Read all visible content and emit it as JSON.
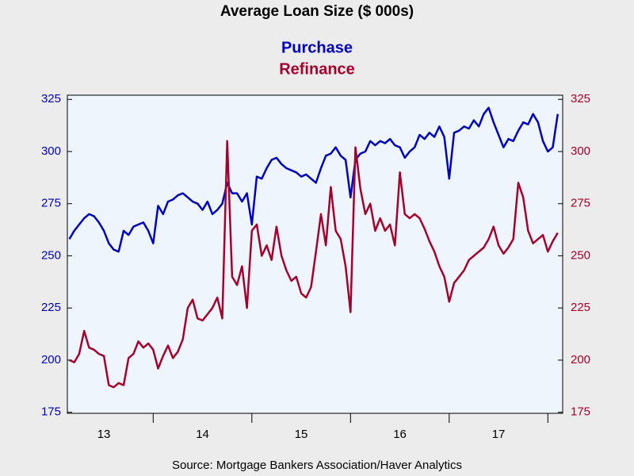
{
  "chart_data": {
    "type": "line",
    "title": "Average Loan Size ($ 000s)",
    "source": "Source:  Mortgage Bankers Association/Haver Analytics",
    "x": [
      13.15,
      13.2,
      13.25,
      13.3,
      13.35,
      13.4,
      13.45,
      13.5,
      13.55,
      13.6,
      13.65,
      13.7,
      13.75,
      13.8,
      13.85,
      13.9,
      13.95,
      14.0,
      14.05,
      14.1,
      14.15,
      14.2,
      14.25,
      14.3,
      14.35,
      14.4,
      14.45,
      14.5,
      14.55,
      14.6,
      14.65,
      14.7,
      14.75,
      14.8,
      14.85,
      14.9,
      14.95,
      15.0,
      15.05,
      15.1,
      15.15,
      15.2,
      15.25,
      15.3,
      15.35,
      15.4,
      15.45,
      15.5,
      15.55,
      15.6,
      15.65,
      15.7,
      15.75,
      15.8,
      15.85,
      15.9,
      15.95,
      16.0,
      16.05,
      16.1,
      16.15,
      16.2,
      16.25,
      16.3,
      16.35,
      16.4,
      16.45,
      16.5,
      16.55,
      16.6,
      16.65,
      16.7,
      16.75,
      16.8,
      16.85,
      16.9,
      16.95,
      17.0,
      17.05,
      17.1,
      17.15,
      17.2,
      17.25,
      17.3,
      17.35,
      17.4,
      17.45,
      17.5,
      17.55,
      17.6,
      17.65,
      17.7,
      17.75,
      17.8,
      17.85,
      17.9,
      17.95,
      18.0,
      18.05,
      18.1
    ],
    "series": [
      {
        "name": "Purchase",
        "color": "#0000c0",
        "values": [
          258,
          262,
          265,
          268,
          270,
          269,
          266,
          262,
          256,
          253,
          252,
          262,
          260,
          264,
          265,
          266,
          262,
          256,
          274,
          270,
          276,
          277,
          279,
          280,
          278,
          276,
          275,
          272,
          276,
          270,
          272,
          275,
          285,
          280,
          280,
          276,
          280,
          265,
          288,
          287,
          292,
          296,
          297,
          294,
          292,
          291,
          290,
          288,
          289,
          287,
          285,
          292,
          298,
          299,
          302,
          298,
          296,
          278,
          296,
          299,
          300,
          305,
          303,
          305,
          304,
          306,
          303,
          302,
          297,
          300,
          302,
          308,
          306,
          309,
          307,
          312,
          307,
          287,
          309,
          310,
          312,
          311,
          315,
          312,
          318,
          321,
          314,
          308,
          302,
          306,
          305,
          310,
          314,
          313,
          318,
          314,
          305,
          300,
          302,
          318
        ]
      },
      {
        "name": "Refinance",
        "color": "#a5002c",
        "axis": "y2",
        "values": [
          200,
          199,
          203,
          214,
          206,
          205,
          203,
          202,
          188,
          187,
          189,
          188,
          201,
          203,
          209,
          206,
          208,
          205,
          196,
          202,
          207,
          201,
          204,
          210,
          225,
          229,
          220,
          219,
          222,
          225,
          230,
          220,
          305,
          240,
          236,
          245,
          225,
          262,
          265,
          250,
          255,
          248,
          264,
          250,
          243,
          238,
          240,
          232,
          230,
          235,
          252,
          270,
          255,
          283,
          262,
          258,
          245,
          223,
          302,
          282,
          270,
          275,
          262,
          268,
          262,
          265,
          255,
          290,
          270,
          268,
          270,
          268,
          263,
          257,
          252,
          245,
          240,
          228,
          237,
          240,
          243,
          248,
          250,
          252,
          254,
          258,
          264,
          255,
          251,
          254,
          258,
          285,
          278,
          262,
          256,
          258,
          260,
          252,
          257,
          261
        ]
      }
    ],
    "xlim": [
      13.13,
      18.15
    ],
    "xticks": [
      {
        "value": 13.5,
        "label": "13"
      },
      {
        "value": 14.5,
        "label": "14"
      },
      {
        "value": 15.5,
        "label": "15"
      },
      {
        "value": 16.5,
        "label": "16"
      },
      {
        "value": 17.5,
        "label": "17"
      }
    ],
    "ylim": [
      174.5,
      327
    ],
    "yticks": [
      175,
      200,
      225,
      250,
      275,
      300,
      325
    ],
    "y2lim": [
      174.5,
      327
    ],
    "y2ticks": [
      175,
      200,
      225,
      250,
      275,
      300,
      325
    ],
    "y_color": "#0000c0",
    "y2_color": "#a5002c"
  }
}
